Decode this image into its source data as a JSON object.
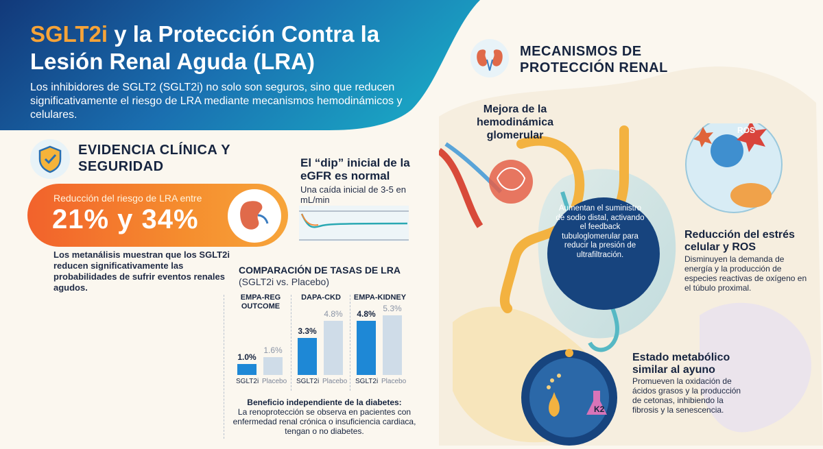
{
  "header": {
    "title_accent": "SGLT2i",
    "title_rest": " y la Protección Contra la Lesión Renal Aguda (LRA)",
    "subtitle": "Los inhibidores de SGLT2 (SGLT2i) no solo son seguros, sino que reducen significativamente el riesgo de LRA mediante mecanismos hemodinámicos y celulares."
  },
  "evidence": {
    "title": "EVIDENCIA CLÍNICA Y SEGURIDAD",
    "icon": "shield-check-icon",
    "risk_label": "Reducción del riesgo de LRA entre",
    "risk_value": "21% y 34%",
    "meta_text": "Los metanálisis muestran que los SGLT2i reducen significativamente las probabilidades de sufrir eventos renales agudos."
  },
  "dip": {
    "title": "El “dip” inicial de la eGFR es normal",
    "subtitle": "Una caída inicial de 3-5 en mL/min"
  },
  "comparison": {
    "title": "COMPARACIÓN DE TASAS DE LRA",
    "subtitle": "(SGLT2i vs. Placebo)",
    "sglt_label": "SGLT2i",
    "placebo_label": "Placebo",
    "trials": [
      {
        "name": "EMPA-REG OUTCOME",
        "sglt2i": "1.0%",
        "placebo": "1.6%"
      },
      {
        "name": "DAPA-CKD",
        "sglt2i": "3.3%",
        "placebo": "4.8%"
      },
      {
        "name": "EMPA-KIDNEY",
        "sglt2i": "4.8%",
        "placebo": "5.3%"
      }
    ],
    "benefit_head": "Beneficio independiente de la diabetes:",
    "benefit_body": "La renoprotección se observa en pacientes con enfermedad renal crónica o insuficiencia cardiaca, tengan o no diabetes."
  },
  "chart_data": {
    "type": "bar",
    "title": "COMPARACIÓN DE TASAS DE LRA",
    "subtitle": "(SGLT2i vs. Placebo)",
    "categories": [
      "EMPA-REG OUTCOME",
      "DAPA-CKD",
      "EMPA-KIDNEY"
    ],
    "series": [
      {
        "name": "SGLT2i",
        "values": [
          1.0,
          3.3,
          4.8
        ]
      },
      {
        "name": "Placebo",
        "values": [
          1.6,
          4.8,
          5.3
        ]
      }
    ],
    "unit": "%"
  },
  "mechanisms": {
    "title": "MECANISMOS DE PROTECCIÓN RENAL",
    "icon": "kidney-icon",
    "hemo_title": "Mejora de la hemodinámica glomerular",
    "hemo_body": "Aumentan el suministro de sodio distal, activando el feedback tubuloglomerular para reducir la presión de ultrafiltración.",
    "ros_title": "Reducción del estrés celular y ROS",
    "ros_body": "Disminuyen la demanda de energía y la producción de especies reactivas de oxígeno en el túbulo proximal.",
    "ros_badge": "ROS",
    "met_title": "Estado metabólico similar al ayuno",
    "met_body": "Promueven la oxidación de ácidos grasos y la producción de cetonas, inhibiendo la fibrosis y la senescencia.",
    "flask_label": "K2"
  },
  "colors": {
    "header_blue": "#12397a",
    "header_teal": "#1aa0c2",
    "accent_orange": "#f6a338",
    "bar_sglt": "#1e88d6",
    "bar_placebo": "#cfdce8"
  }
}
